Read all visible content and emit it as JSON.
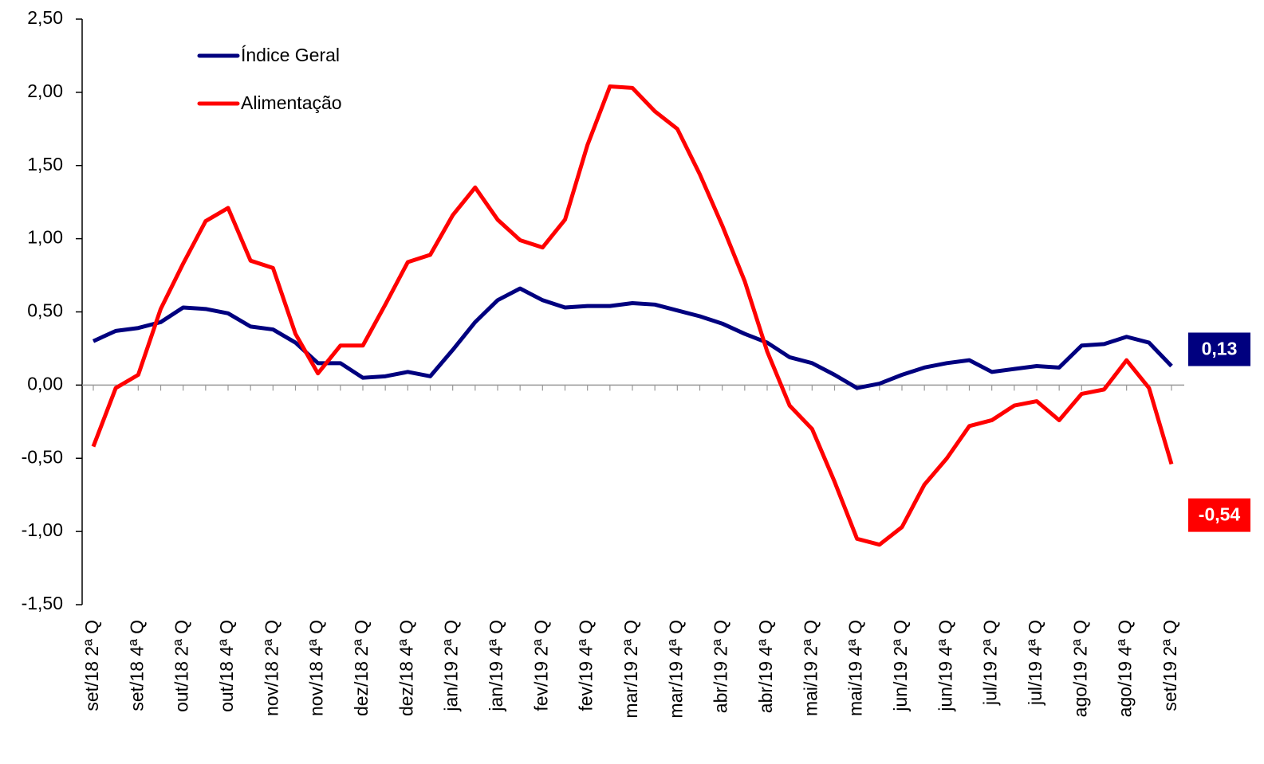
{
  "chart_data": {
    "type": "line",
    "categories": [
      "set/18 2ª Q",
      null,
      "set/18 4ª Q",
      null,
      "out/18 2ª Q",
      null,
      "out/18 4ª Q",
      null,
      "nov/18 2ª Q",
      null,
      "nov/18 4ª Q",
      null,
      "dez/18 2ª Q",
      null,
      "dez/18 4ª Q",
      null,
      "jan/19 2ª Q",
      null,
      "jan/19 4ª Q",
      null,
      "fev/19 2ª Q",
      null,
      "fev/19 4ª Q",
      null,
      "mar/19 2ª Q",
      null,
      "mar/19 4ª Q",
      null,
      "abr/19 2ª Q",
      null,
      "abr/19 4ª Q",
      null,
      "mai/19 2ª Q",
      null,
      "mai/19 4ª Q",
      null,
      "jun/19 2ª Q",
      null,
      "jun/19 4ª Q",
      null,
      "jul/19 2ª Q",
      null,
      "jul/19 4ª Q",
      null,
      "ago/19 2ª Q",
      null,
      "ago/19 4ª Q",
      null,
      "set/19 2ª Q"
    ],
    "series": [
      {
        "name": "Índice Geral",
        "color": "#00007f",
        "values": [
          0.3,
          0.37,
          0.39,
          0.43,
          0.53,
          0.52,
          0.49,
          0.4,
          0.38,
          0.29,
          0.15,
          0.15,
          0.05,
          0.06,
          0.09,
          0.06,
          0.24,
          0.43,
          0.58,
          0.66,
          0.58,
          0.53,
          0.54,
          0.54,
          0.56,
          0.55,
          0.51,
          0.47,
          0.42,
          0.35,
          0.29,
          0.19,
          0.15,
          0.07,
          -0.02,
          0.01,
          0.07,
          0.12,
          0.15,
          0.17,
          0.09,
          0.11,
          0.13,
          0.12,
          0.27,
          0.28,
          0.33,
          0.29,
          0.13
        ],
        "value_labels": [
          null,
          null,
          null,
          null,
          null,
          null,
          null,
          null,
          null,
          null,
          null,
          null,
          null,
          null,
          null,
          null,
          null,
          null,
          null,
          null,
          null,
          null,
          null,
          null,
          null,
          null,
          null,
          null,
          null,
          null,
          null,
          null,
          null,
          null,
          null,
          null,
          null,
          null,
          null,
          null,
          null,
          null,
          null,
          null,
          null,
          null,
          null,
          null,
          "0,13"
        ]
      },
      {
        "name": "Alimentação",
        "color": "#ff0000",
        "values": [
          -0.42,
          -0.02,
          0.07,
          0.52,
          0.83,
          1.12,
          1.21,
          0.85,
          0.8,
          0.35,
          0.08,
          0.27,
          0.27,
          0.55,
          0.84,
          0.89,
          1.16,
          1.35,
          1.13,
          0.99,
          0.94,
          1.13,
          1.64,
          2.04,
          2.03,
          1.87,
          1.75,
          1.44,
          1.09,
          0.71,
          0.23,
          -0.14,
          -0.3,
          -0.66,
          -1.05,
          -1.09,
          -0.97,
          -0.68,
          -0.5,
          -0.28,
          -0.24,
          -0.14,
          -0.11,
          -0.24,
          -0.06,
          -0.03,
          0.17,
          -0.02,
          -0.54
        ],
        "value_labels": [
          null,
          null,
          null,
          null,
          null,
          null,
          null,
          null,
          null,
          null,
          null,
          null,
          null,
          null,
          null,
          null,
          null,
          null,
          null,
          null,
          null,
          null,
          null,
          null,
          null,
          null,
          null,
          null,
          null,
          null,
          null,
          null,
          null,
          null,
          null,
          null,
          null,
          null,
          null,
          null,
          null,
          null,
          null,
          null,
          null,
          null,
          null,
          null,
          "-0,54"
        ]
      }
    ],
    "ylim": [
      -1.5,
      2.5
    ],
    "yticks": [
      {
        "value": -1.5,
        "label": "-1,50"
      },
      {
        "value": -1,
        "label": "-1,00"
      },
      {
        "value": -0.5,
        "label": "-0,50"
      },
      {
        "value": 0,
        "label": "0,00"
      },
      {
        "value": 0.5,
        "label": "0,50"
      },
      {
        "value": 1,
        "label": "1,00"
      },
      {
        "value": 1.5,
        "label": "1,50"
      },
      {
        "value": 2,
        "label": "2,00"
      },
      {
        "value": 2.5,
        "label": "2,50"
      }
    ],
    "legend": "upper left",
    "grid": false
  }
}
